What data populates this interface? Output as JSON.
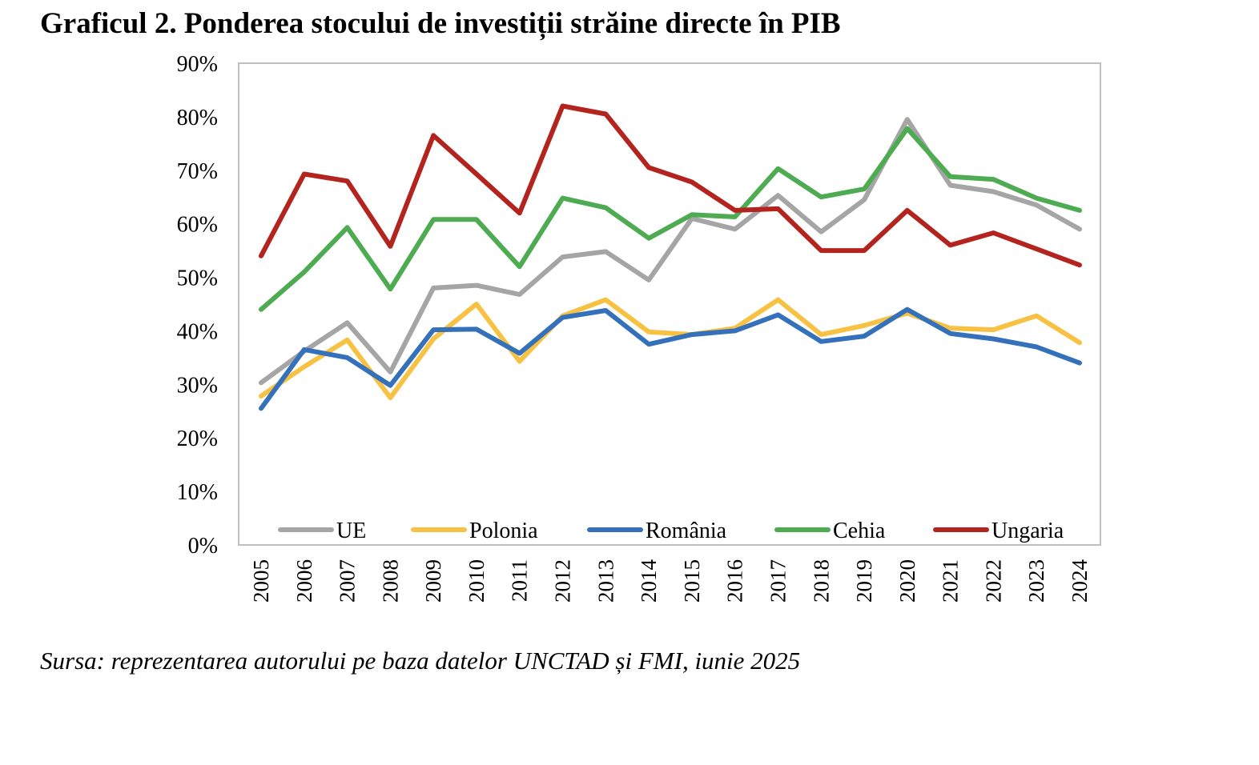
{
  "title": "Graficul 2. Ponderea stocului de investiții străine directe în PIB",
  "source": "Sursa: reprezentarea autorului pe baza datelor UNCTAD și FMI, iunie 2025",
  "chart_data": {
    "type": "line",
    "title": "Graficul 2. Ponderea stocului de investiții străine directe în PIB",
    "xlabel": "",
    "ylabel": "",
    "ylim": [
      0,
      90
    ],
    "y_ticks": [
      "0%",
      "10%",
      "20%",
      "30%",
      "40%",
      "50%",
      "60%",
      "70%",
      "80%",
      "90%"
    ],
    "grid": false,
    "legend_position": "bottom-inside",
    "x": [
      "2005",
      "2006",
      "2007",
      "2008",
      "2009",
      "2010",
      "2011",
      "2012",
      "2013",
      "2014",
      "2015",
      "2016",
      "2017",
      "2018",
      "2019",
      "2020",
      "2021",
      "2022",
      "2023",
      "2024"
    ],
    "series": [
      {
        "name": "UE",
        "color": "#A5A5A5",
        "values": [
          30.3,
          36.2,
          41.5,
          32.3,
          48.0,
          48.5,
          46.8,
          53.8,
          54.8,
          49.5,
          61.0,
          59.0,
          65.3,
          58.5,
          64.5,
          79.5,
          67.2,
          66.0,
          63.5,
          59.0
        ]
      },
      {
        "name": "Polonia",
        "color": "#F7C244",
        "values": [
          27.8,
          33.3,
          38.3,
          27.5,
          38.5,
          45.0,
          34.3,
          42.8,
          45.8,
          39.8,
          39.3,
          40.5,
          45.8,
          39.3,
          41.0,
          43.3,
          40.5,
          40.2,
          42.8,
          37.8
        ]
      },
      {
        "name": "România",
        "color": "#3471BA",
        "values": [
          25.5,
          36.5,
          35.0,
          29.8,
          40.2,
          40.3,
          35.8,
          42.5,
          43.8,
          37.5,
          39.3,
          40.0,
          43.0,
          38.0,
          39.0,
          44.0,
          39.5,
          38.5,
          37.0,
          34.0
        ]
      },
      {
        "name": "Cehia",
        "color": "#4EAB52",
        "values": [
          44.0,
          51.0,
          59.3,
          47.8,
          60.8,
          60.8,
          52.0,
          64.8,
          63.0,
          57.3,
          61.7,
          61.3,
          70.3,
          65.0,
          66.5,
          77.8,
          68.8,
          68.3,
          64.8,
          62.5
        ]
      },
      {
        "name": "Ungaria",
        "color": "#B4241E",
        "values": [
          54.0,
          69.3,
          68.0,
          55.8,
          76.5,
          69.3,
          62.0,
          82.0,
          80.5,
          70.5,
          67.8,
          62.5,
          62.8,
          55.0,
          55.0,
          62.5,
          56.0,
          58.3,
          55.3,
          52.3
        ]
      }
    ]
  }
}
